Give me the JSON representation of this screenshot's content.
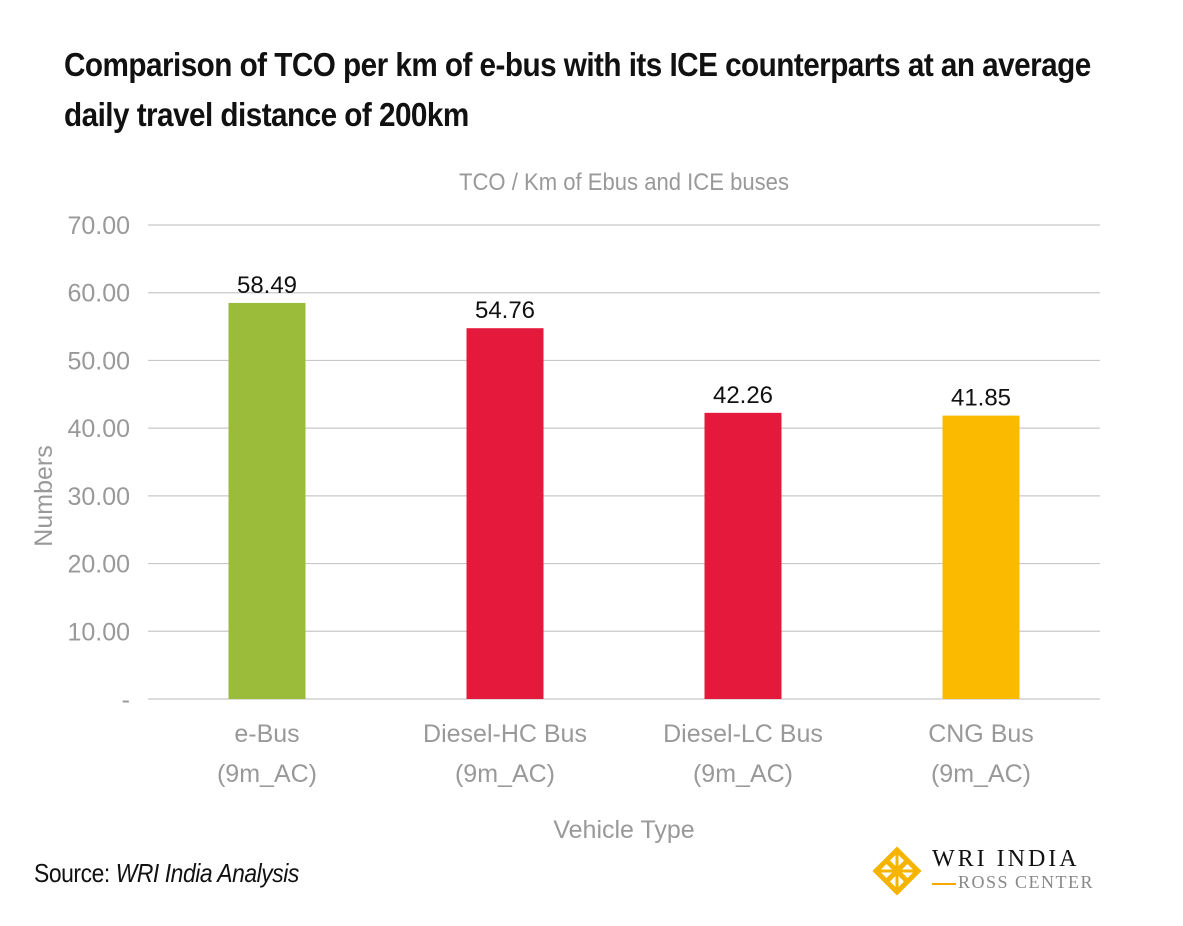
{
  "heading": "Comparison of TCO per km of e-bus with its ICE counterparts at an average daily travel distance of 200km",
  "source_label": "Source: ",
  "source_value": "WRI India Analysis",
  "logo": {
    "line1": "WRI INDIA",
    "line2": "ROSS CENTER"
  },
  "chart_data": {
    "type": "bar",
    "title": "TCO / Km of Ebus and ICE buses",
    "xlabel": "Vehicle Type",
    "ylabel": "Numbers",
    "categories": [
      [
        "e-Bus",
        "(9m_AC)"
      ],
      [
        "Diesel-HC Bus",
        "(9m_AC)"
      ],
      [
        "Diesel-LC Bus",
        "(9m_AC)"
      ],
      [
        "CNG Bus",
        "(9m_AC)"
      ]
    ],
    "values": [
      58.49,
      54.76,
      42.26,
      41.85
    ],
    "data_labels": [
      "58.49",
      "54.76",
      "42.26",
      "41.85"
    ],
    "colors": [
      "#9bbb3b",
      "#e5193c",
      "#e5193c",
      "#fbb900"
    ],
    "ylim": [
      0,
      70
    ],
    "yticks": [
      0,
      10,
      20,
      30,
      40,
      50,
      60,
      70
    ],
    "ytick_labels": [
      "-",
      "10.00",
      "20.00",
      "30.00",
      "40.00",
      "50.00",
      "60.00",
      "70.00"
    ],
    "grid": true,
    "legend": "none"
  }
}
